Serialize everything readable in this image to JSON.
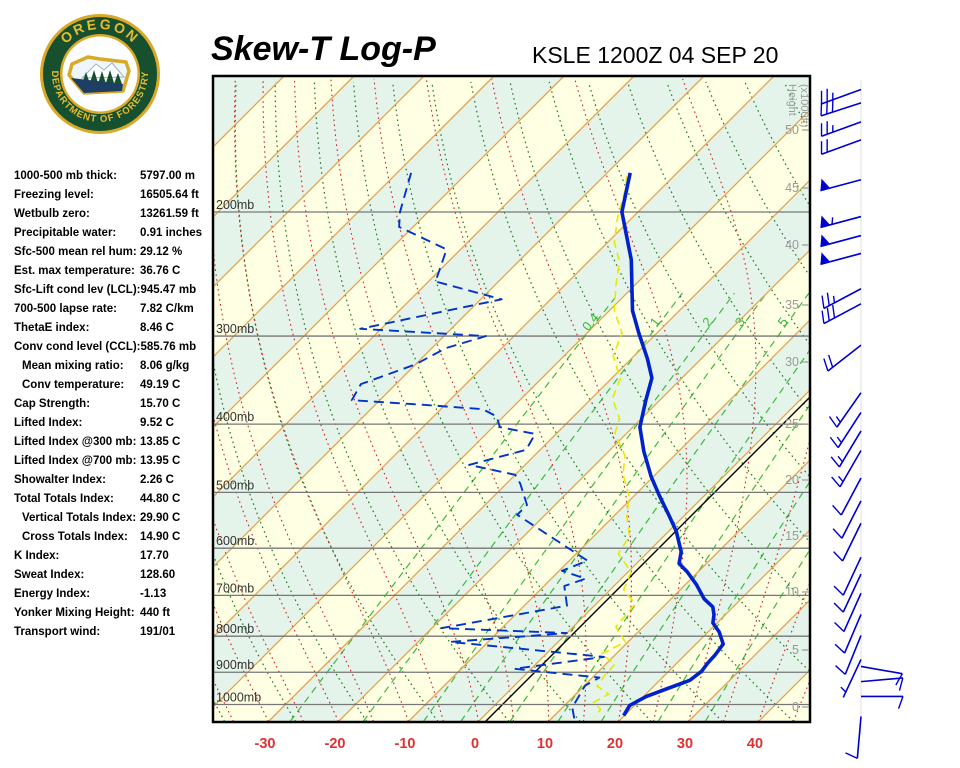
{
  "header": {
    "title": "Skew-T Log-P",
    "station_time": "KSLE 1200Z 04 SEP 20",
    "logo_top": "OREGON",
    "logo_bottom": "DEPARTMENT OF FORESTRY"
  },
  "stats": {
    "rows": [
      {
        "label": "1000-500 mb thick:",
        "value": "5797.00 m",
        "indent": false
      },
      {
        "label": "Freezing level:",
        "value": "16505.64 ft",
        "indent": false
      },
      {
        "label": "Wetbulb zero:",
        "value": "13261.59 ft",
        "indent": false
      },
      {
        "label": "Precipitable water:",
        "value": "0.91 inches",
        "indent": false
      },
      {
        "label": "Sfc-500 mean rel hum:",
        "value": "29.12 %",
        "indent": false
      },
      {
        "label": "Est. max temperature:",
        "value": "36.76 C",
        "indent": false
      },
      {
        "label": "Sfc-Lift cond lev (LCL):",
        "value": "945.47 mb",
        "indent": false
      },
      {
        "label": "700-500 lapse rate:",
        "value": "7.82 C/km",
        "indent": false
      },
      {
        "label": "ThetaE index:",
        "value": "8.46 C",
        "indent": false
      },
      {
        "label": "Conv cond level (CCL):",
        "value": "585.76 mb",
        "indent": false
      },
      {
        "label": "Mean mixing ratio:",
        "value": "8.06 g/kg",
        "indent": true
      },
      {
        "label": "Conv temperature:",
        "value": "49.19 C",
        "indent": true
      },
      {
        "label": "Cap Strength:",
        "value": "15.70 C",
        "indent": false
      },
      {
        "label": "Lifted Index:",
        "value": "9.52 C",
        "indent": false
      },
      {
        "label": "Lifted Index @300 mb:",
        "value": "13.85 C",
        "indent": false
      },
      {
        "label": "Lifted Index @700 mb:",
        "value": "13.95 C",
        "indent": false
      },
      {
        "label": "Showalter Index:",
        "value": "2.26 C",
        "indent": false
      },
      {
        "label": "Total Totals Index:",
        "value": "44.80 C",
        "indent": false
      },
      {
        "label": "Vertical Totals Index:",
        "value": "29.90 C",
        "indent": true
      },
      {
        "label": "Cross Totals Index:",
        "value": "14.90 C",
        "indent": true
      },
      {
        "label": "K Index:",
        "value": "17.70",
        "indent": false
      },
      {
        "label": "Sweat Index:",
        "value": "128.60",
        "indent": false
      },
      {
        "label": "Energy Index:",
        "value": "-1.13",
        "indent": false
      },
      {
        "label": "Yonker Mixing Height:",
        "value": "440 ft",
        "indent": false
      },
      {
        "label": "Transport wind:",
        "value": "191/01",
        "indent": false
      }
    ]
  },
  "colors": {
    "band_yellow": "#ffffe4",
    "band_green": "#e4f4ea",
    "isotherm": "#ee9f3c",
    "dry_adiabat": "#1f7a1f",
    "moist_adiabat": "#cc2222",
    "mixing_ratio": "#3cb93c",
    "isobar": "#777777",
    "pressure_label": "#333333",
    "zero_isotherm": "#000000",
    "temperature": "#0022cc",
    "dewpoint": "#0033cc",
    "wetbulb": "#e8e800",
    "axis_temp_labels": "#e03030",
    "height_labels": "#999999",
    "barbs": "#0000cc",
    "logo_green": "#17502e",
    "logo_gold": "#d9a928",
    "logo_navy": "#1c3f63"
  },
  "chart_data": {
    "type": "skewt-log-p",
    "title": "Skew-T Log-P",
    "station": "KSLE",
    "valid_time": "1200Z 04 SEP 20",
    "x_axis": {
      "unit": "C",
      "ticks": [
        -30,
        -20,
        -10,
        0,
        10,
        20,
        30,
        40
      ]
    },
    "isobars_mb": [
      200,
      300,
      400,
      500,
      600,
      700,
      800,
      900,
      1000
    ],
    "pressure_label_suffix": "mb",
    "pressure_range_mb": [
      129,
      1057
    ],
    "isotherm_step_c": 10,
    "zero_isotherm_c": 0,
    "dry_adiabat_theta_c": {
      "from": -60,
      "to": 150,
      "step": 10
    },
    "moist_adiabat_surface_t_c": {
      "from": -70,
      "to": 45,
      "step": 5
    },
    "mixing_ratio_gkg": [
      0.4,
      1,
      2,
      3,
      5,
      8,
      12,
      20,
      30
    ],
    "mixing_ratio_labeled": [
      "0.4",
      "1",
      "2",
      "3",
      "5"
    ],
    "height_axis_label_1": "Height",
    "height_axis_label_2": "(x1000ft)",
    "height_ticks_kft": [
      [
        0,
        707
      ],
      [
        5,
        650
      ],
      [
        10,
        592
      ],
      [
        15,
        536
      ],
      [
        20,
        480
      ],
      [
        25,
        424
      ],
      [
        30,
        362
      ],
      [
        35,
        305
      ],
      [
        40,
        245
      ],
      [
        45,
        188
      ],
      [
        50,
        130
      ]
    ],
    "temperature_profile_p_t": [
      [
        176,
        -56.7
      ],
      [
        200,
        -52.3
      ],
      [
        234,
        -44.1
      ],
      [
        276,
        -36.7
      ],
      [
        297,
        -32.6
      ],
      [
        323,
        -27.7
      ],
      [
        344,
        -24.3
      ],
      [
        371,
        -21.9
      ],
      [
        404,
        -19.0
      ],
      [
        437,
        -15.0
      ],
      [
        475,
        -10.3
      ],
      [
        504,
        -6.6
      ],
      [
        541,
        -2.0
      ],
      [
        568,
        1.1
      ],
      [
        607,
        4.7
      ],
      [
        631,
        6.1
      ],
      [
        648,
        8.4
      ],
      [
        676,
        11.6
      ],
      [
        708,
        14.7
      ],
      [
        727,
        17.1
      ],
      [
        746,
        18.4
      ],
      [
        766,
        19.4
      ],
      [
        789,
        21.6
      ],
      [
        821,
        23.9
      ],
      [
        851,
        24.3
      ],
      [
        874,
        24.4
      ],
      [
        897,
        24.7
      ],
      [
        924,
        24.3
      ],
      [
        949,
        22.3
      ],
      [
        974,
        20.4
      ],
      [
        1003,
        19.3
      ],
      [
        1037,
        19.9
      ]
    ],
    "dewpoint_profile_p_t": [
      [
        176,
        -88
      ],
      [
        200,
        -84
      ],
      [
        210,
        -82
      ],
      [
        226,
        -72
      ],
      [
        251,
        -69
      ],
      [
        266,
        -57
      ],
      [
        293,
        -73
      ],
      [
        300,
        -54
      ],
      [
        312,
        -58
      ],
      [
        329,
        -60
      ],
      [
        351,
        -65
      ],
      [
        370,
        -64
      ],
      [
        375,
        -54
      ],
      [
        381,
        -44
      ],
      [
        390,
        -41
      ],
      [
        404,
        -39
      ],
      [
        413,
        -33
      ],
      [
        435,
        -32
      ],
      [
        457,
        -38
      ],
      [
        472,
        -30
      ],
      [
        486,
        -28
      ],
      [
        521,
        -24
      ],
      [
        538,
        -24
      ],
      [
        625,
        -7.4
      ],
      [
        646,
        -9.6
      ],
      [
        663,
        -5.1
      ],
      [
        679,
        -7.1
      ],
      [
        724,
        -3.9
      ],
      [
        779,
        -18.6
      ],
      [
        792,
        0
      ],
      [
        815,
        -15.4
      ],
      [
        856,
        8.7
      ],
      [
        890,
        -2.4
      ],
      [
        916,
        11
      ],
      [
        940,
        10.1
      ],
      [
        1010,
        11.4
      ],
      [
        1048,
        13.3
      ]
    ],
    "wetbulb_profile_p_t": [
      [
        178,
        -56.7
      ],
      [
        186,
        -55
      ],
      [
        205,
        -51.9
      ],
      [
        221,
        -49
      ],
      [
        235,
        -45.6
      ],
      [
        254,
        -42.7
      ],
      [
        276,
        -39.3
      ],
      [
        297,
        -35
      ],
      [
        320,
        -33
      ],
      [
        345,
        -28.7
      ],
      [
        368,
        -27
      ],
      [
        393,
        -23.1
      ],
      [
        412,
        -21.7
      ],
      [
        444,
        -17
      ],
      [
        471,
        -14.7
      ],
      [
        506,
        -10.7
      ],
      [
        541,
        -8.1
      ],
      [
        577,
        -4.9
      ],
      [
        611,
        -4
      ],
      [
        648,
        0.4
      ],
      [
        687,
        1.9
      ],
      [
        720,
        5.6
      ],
      [
        776,
        6.1
      ],
      [
        815,
        9.6
      ],
      [
        848,
        7.9
      ],
      [
        876,
        11.3
      ],
      [
        906,
        11.4
      ],
      [
        942,
        11.9
      ],
      [
        967,
        14.7
      ],
      [
        993,
        13.7
      ],
      [
        1016,
        15.7
      ],
      [
        1040,
        15.9
      ]
    ],
    "wind_barbs": [
      {
        "p": 134,
        "dir": 250,
        "kt": 25
      },
      {
        "p": 140,
        "dir": 252,
        "kt": 30
      },
      {
        "p": 149,
        "dir": 250,
        "kt": 25
      },
      {
        "p": 158,
        "dir": 250,
        "kt": 20
      },
      {
        "p": 180,
        "dir": 255,
        "kt": 50
      },
      {
        "p": 203,
        "dir": 255,
        "kt": 55
      },
      {
        "p": 216,
        "dir": 255,
        "kt": 50
      },
      {
        "p": 229,
        "dir": 255,
        "kt": 50
      },
      {
        "p": 257,
        "dir": 242,
        "kt": 25
      },
      {
        "p": 270,
        "dir": 242,
        "kt": 30
      },
      {
        "p": 309,
        "dir": 232,
        "kt": 20
      },
      {
        "p": 361,
        "dir": 215,
        "kt": 15
      },
      {
        "p": 385,
        "dir": 213,
        "kt": 15
      },
      {
        "p": 409,
        "dir": 211,
        "kt": 15
      },
      {
        "p": 436,
        "dir": 210,
        "kt": 15
      },
      {
        "p": 477,
        "dir": 208,
        "kt": 10
      },
      {
        "p": 514,
        "dir": 207,
        "kt": 10
      },
      {
        "p": 553,
        "dir": 206,
        "kt": 10
      },
      {
        "p": 618,
        "dir": 205,
        "kt": 10
      },
      {
        "p": 653,
        "dir": 205,
        "kt": 10
      },
      {
        "p": 695,
        "dir": 204,
        "kt": 10
      },
      {
        "p": 745,
        "dir": 203,
        "kt": 10
      },
      {
        "p": 798,
        "dir": 202,
        "kt": 10
      },
      {
        "p": 863,
        "dir": 205,
        "kt": 5
      },
      {
        "p": 883,
        "dir": 100,
        "kt": 10
      },
      {
        "p": 928,
        "dir": 85,
        "kt": 10
      },
      {
        "p": 974,
        "dir": 90,
        "kt": 10
      },
      {
        "p": 1040,
        "dir": 185,
        "kt": 10
      }
    ]
  }
}
